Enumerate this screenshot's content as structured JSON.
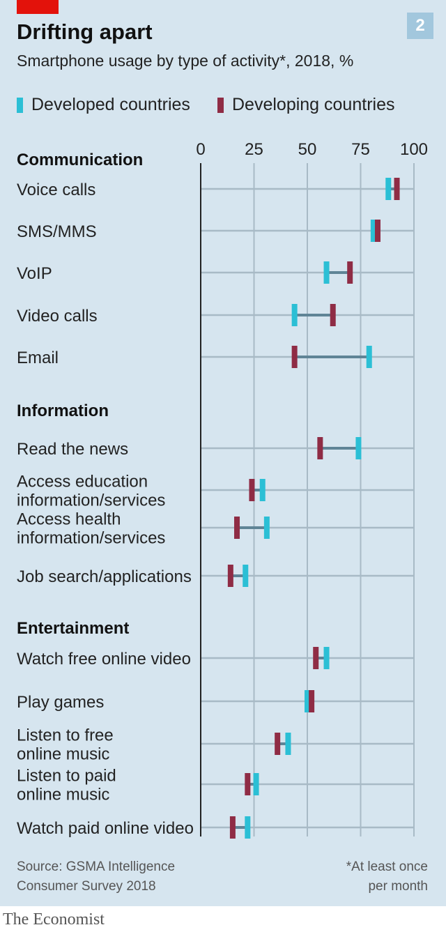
{
  "header": {
    "title": "Drifting apart",
    "subtitle": "Smartphone usage by type of activity*, 2018, %",
    "badge": "2"
  },
  "footer": {
    "source_line1": "Source: GSMA Intelligence",
    "source_line2": "Consumer Survey 2018",
    "note_line1": "*At least once",
    "note_line2": "per month",
    "brand": "The Economist"
  },
  "colors": {
    "developed": "#2bbfd5",
    "developing": "#8f2c45",
    "connector": "#5f8496",
    "grid": "#a8bac6",
    "axis": "#222222"
  },
  "chart_data": {
    "type": "dumbbell",
    "title": "Drifting apart",
    "subtitle": "Smartphone usage by type of activity*, 2018, %",
    "xlim": [
      0,
      100
    ],
    "ticks": [
      "0",
      "25",
      "50",
      "75",
      "100"
    ],
    "tick_values": [
      0,
      25,
      50,
      75,
      100
    ],
    "legend": [
      "Developed countries",
      "Developing countries"
    ],
    "legend_position": "top-left",
    "groups": [
      {
        "name": "Communication",
        "items": [
          {
            "label": [
              "Voice calls"
            ],
            "developed": 88,
            "developing": 92
          },
          {
            "label": [
              "SMS/MMS"
            ],
            "developed": 81,
            "developing": 83
          },
          {
            "label": [
              "VoIP"
            ],
            "developed": 59,
            "developing": 70
          },
          {
            "label": [
              "Video calls"
            ],
            "developed": 44,
            "developing": 62
          },
          {
            "label": [
              "Email"
            ],
            "developed": 79,
            "developing": 44
          }
        ]
      },
      {
        "name": "Information",
        "items": [
          {
            "label": [
              "Read the news"
            ],
            "developed": 74,
            "developing": 56
          },
          {
            "label": [
              "Access education",
              "information/services"
            ],
            "developed": 29,
            "developing": 24
          },
          {
            "label": [
              "Access health",
              "information/services"
            ],
            "developed": 31,
            "developing": 17
          },
          {
            "label": [
              "Job search/applications"
            ],
            "developed": 21,
            "developing": 14
          }
        ]
      },
      {
        "name": "Entertainment",
        "items": [
          {
            "label": [
              "Watch free online video"
            ],
            "developed": 59,
            "developing": 54
          },
          {
            "label": [
              "Play games"
            ],
            "developed": 50,
            "developing": 52
          },
          {
            "label": [
              "Listen to free",
              "online music"
            ],
            "developed": 41,
            "developing": 36
          },
          {
            "label": [
              "Listen to paid",
              "online music"
            ],
            "developed": 26,
            "developing": 22
          },
          {
            "label": [
              "Watch paid online video"
            ],
            "developed": 22,
            "developing": 15
          }
        ]
      }
    ]
  }
}
